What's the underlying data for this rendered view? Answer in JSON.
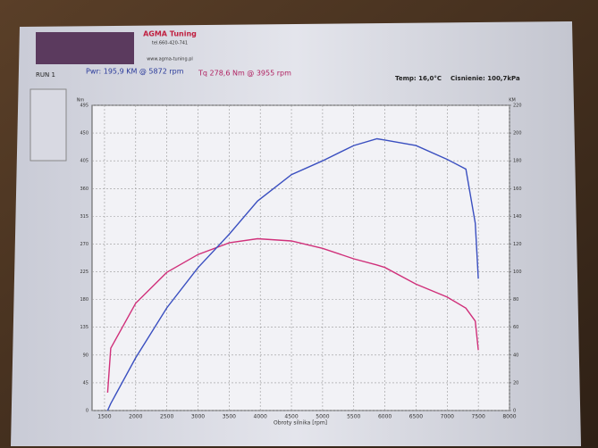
{
  "chart_data": {
    "type": "line",
    "company": "AGMA Tuning",
    "phone": "tel.660-420-741",
    "website": "www.agma-tuning.pl",
    "run": "RUN 1",
    "power_summary": "Pwr: 195,9 KM @ 5872 rpm",
    "torque_summary": "Tq 278,6 Nm @ 3955 rpm",
    "temperature": "Temp: 16,0°C",
    "pressure": "Cisnienie: 100,7kPa",
    "x_label": "Obroty silnika [rpm]",
    "y_label": "Nm",
    "y2_label": "KM",
    "x": [
      1550,
      1600,
      2000,
      2500,
      3000,
      3500,
      3955,
      4500,
      5000,
      5500,
      5872,
      6000,
      6500,
      7000,
      7300,
      7450,
      7500
    ],
    "series": [
      {
        "color": "#d0307a",
        "values": [
          29,
          101,
          174,
          224,
          253,
          272,
          278.6,
          275,
          263,
          246,
          236,
          232,
          205,
          184,
          166,
          145,
          98
        ]
      },
      {
        "color": "#3a4fc0",
        "axis": "y2",
        "values": [
          0,
          5,
          38,
          74,
          103,
          127,
          151,
          170,
          180,
          191,
          195.9,
          195,
          191,
          181,
          174,
          135,
          95
        ]
      }
    ],
    "xlim": [
      1300,
      8000
    ],
    "xticks": [
      1500,
      2000,
      2500,
      3000,
      3500,
      4000,
      4500,
      5000,
      5500,
      6000,
      6500,
      7000,
      7500,
      8000
    ],
    "ylim": [
      0,
      495
    ],
    "yticks": [
      0,
      45,
      90,
      135,
      180,
      225,
      270,
      315,
      360,
      405,
      450,
      495
    ],
    "y2lim": [
      0,
      220
    ],
    "y2ticks": [
      0,
      20,
      40,
      60,
      80,
      100,
      120,
      140,
      160,
      180,
      200,
      220
    ],
    "grid": true
  }
}
